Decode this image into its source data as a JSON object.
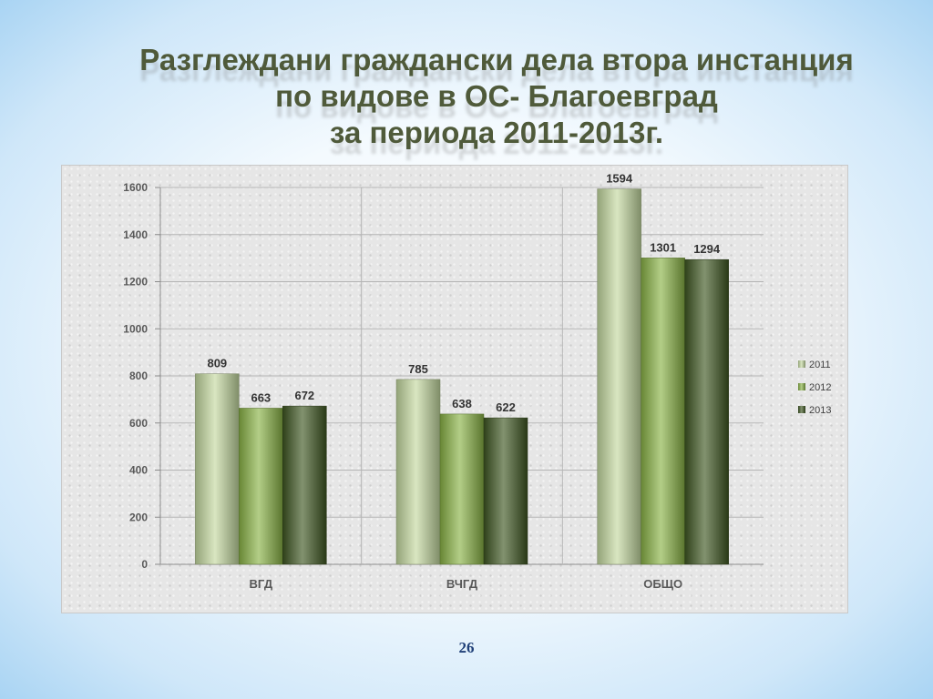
{
  "slide": {
    "title_lines": [
      "Разглеждани граждански дела втора инстанция",
      "по видове в ОС- Благоевград",
      "за периода 2011-2013г."
    ],
    "page_number": "26"
  },
  "chart_data": {
    "type": "bar",
    "categories": [
      "ВГД",
      "ВЧГД",
      "ОБЩО"
    ],
    "series": [
      {
        "name": "2011",
        "values": [
          809,
          785,
          1594
        ],
        "color": "#c4d9a0"
      },
      {
        "name": "2012",
        "values": [
          663,
          638,
          1301
        ],
        "color": "#8ab447"
      },
      {
        "name": "2013",
        "values": [
          672,
          622,
          1294
        ],
        "color": "#3f5722"
      }
    ],
    "title": "",
    "xlabel": "",
    "ylabel": "",
    "ylim": [
      0,
      1600
    ],
    "yticks": [
      0,
      200,
      400,
      600,
      800,
      1000,
      1200,
      1400,
      1600
    ],
    "grid": true,
    "legend_position": "right",
    "data_labels": true
  }
}
